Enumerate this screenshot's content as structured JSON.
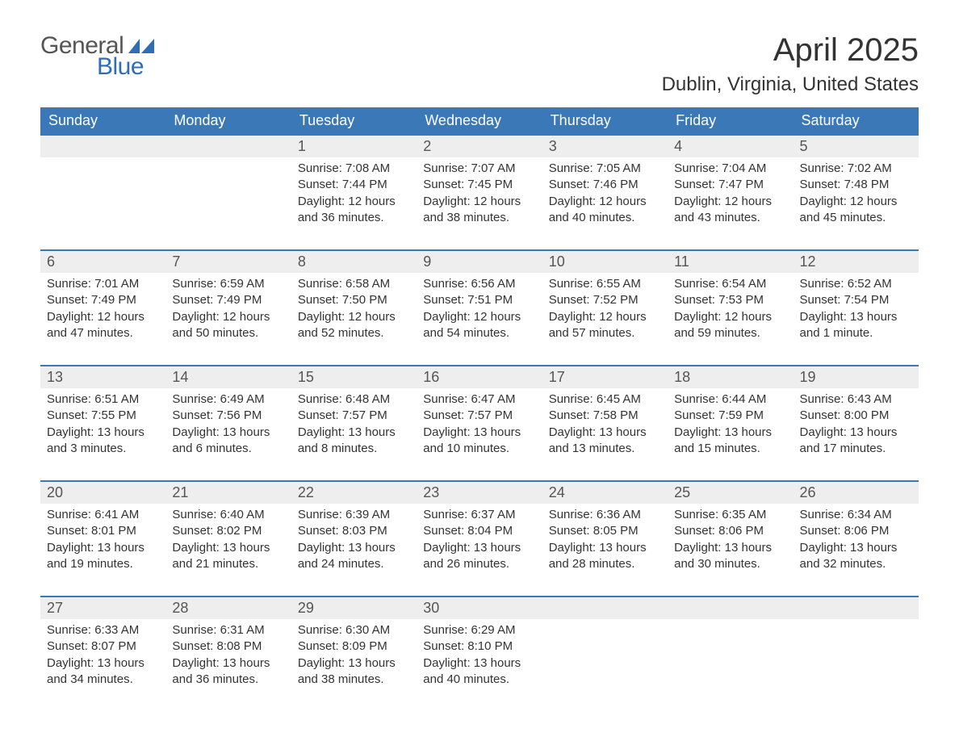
{
  "logo": {
    "text_general": "General",
    "text_blue": "Blue",
    "icon_color": "#2f6eb5"
  },
  "title": "April 2025",
  "location": "Dublin, Virginia, United States",
  "colors": {
    "header_bg": "#3b78b8",
    "header_text": "#ffffff",
    "daynum_bg": "#eeeeee",
    "daynum_border": "#3b78b8",
    "body_text": "#333333",
    "page_bg": "#ffffff"
  },
  "typography": {
    "title_fontsize": 40,
    "location_fontsize": 24,
    "header_fontsize": 18,
    "daynum_fontsize": 18,
    "detail_fontsize": 15
  },
  "day_headers": [
    "Sunday",
    "Monday",
    "Tuesday",
    "Wednesday",
    "Thursday",
    "Friday",
    "Saturday"
  ],
  "weeks": [
    [
      null,
      null,
      {
        "n": "1",
        "sunrise": "Sunrise: 7:08 AM",
        "sunset": "Sunset: 7:44 PM",
        "daylight": "Daylight: 12 hours and 36 minutes."
      },
      {
        "n": "2",
        "sunrise": "Sunrise: 7:07 AM",
        "sunset": "Sunset: 7:45 PM",
        "daylight": "Daylight: 12 hours and 38 minutes."
      },
      {
        "n": "3",
        "sunrise": "Sunrise: 7:05 AM",
        "sunset": "Sunset: 7:46 PM",
        "daylight": "Daylight: 12 hours and 40 minutes."
      },
      {
        "n": "4",
        "sunrise": "Sunrise: 7:04 AM",
        "sunset": "Sunset: 7:47 PM",
        "daylight": "Daylight: 12 hours and 43 minutes."
      },
      {
        "n": "5",
        "sunrise": "Sunrise: 7:02 AM",
        "sunset": "Sunset: 7:48 PM",
        "daylight": "Daylight: 12 hours and 45 minutes."
      }
    ],
    [
      {
        "n": "6",
        "sunrise": "Sunrise: 7:01 AM",
        "sunset": "Sunset: 7:49 PM",
        "daylight": "Daylight: 12 hours and 47 minutes."
      },
      {
        "n": "7",
        "sunrise": "Sunrise: 6:59 AM",
        "sunset": "Sunset: 7:49 PM",
        "daylight": "Daylight: 12 hours and 50 minutes."
      },
      {
        "n": "8",
        "sunrise": "Sunrise: 6:58 AM",
        "sunset": "Sunset: 7:50 PM",
        "daylight": "Daylight: 12 hours and 52 minutes."
      },
      {
        "n": "9",
        "sunrise": "Sunrise: 6:56 AM",
        "sunset": "Sunset: 7:51 PM",
        "daylight": "Daylight: 12 hours and 54 minutes."
      },
      {
        "n": "10",
        "sunrise": "Sunrise: 6:55 AM",
        "sunset": "Sunset: 7:52 PM",
        "daylight": "Daylight: 12 hours and 57 minutes."
      },
      {
        "n": "11",
        "sunrise": "Sunrise: 6:54 AM",
        "sunset": "Sunset: 7:53 PM",
        "daylight": "Daylight: 12 hours and 59 minutes."
      },
      {
        "n": "12",
        "sunrise": "Sunrise: 6:52 AM",
        "sunset": "Sunset: 7:54 PM",
        "daylight": "Daylight: 13 hours and 1 minute."
      }
    ],
    [
      {
        "n": "13",
        "sunrise": "Sunrise: 6:51 AM",
        "sunset": "Sunset: 7:55 PM",
        "daylight": "Daylight: 13 hours and 3 minutes."
      },
      {
        "n": "14",
        "sunrise": "Sunrise: 6:49 AM",
        "sunset": "Sunset: 7:56 PM",
        "daylight": "Daylight: 13 hours and 6 minutes."
      },
      {
        "n": "15",
        "sunrise": "Sunrise: 6:48 AM",
        "sunset": "Sunset: 7:57 PM",
        "daylight": "Daylight: 13 hours and 8 minutes."
      },
      {
        "n": "16",
        "sunrise": "Sunrise: 6:47 AM",
        "sunset": "Sunset: 7:57 PM",
        "daylight": "Daylight: 13 hours and 10 minutes."
      },
      {
        "n": "17",
        "sunrise": "Sunrise: 6:45 AM",
        "sunset": "Sunset: 7:58 PM",
        "daylight": "Daylight: 13 hours and 13 minutes."
      },
      {
        "n": "18",
        "sunrise": "Sunrise: 6:44 AM",
        "sunset": "Sunset: 7:59 PM",
        "daylight": "Daylight: 13 hours and 15 minutes."
      },
      {
        "n": "19",
        "sunrise": "Sunrise: 6:43 AM",
        "sunset": "Sunset: 8:00 PM",
        "daylight": "Daylight: 13 hours and 17 minutes."
      }
    ],
    [
      {
        "n": "20",
        "sunrise": "Sunrise: 6:41 AM",
        "sunset": "Sunset: 8:01 PM",
        "daylight": "Daylight: 13 hours and 19 minutes."
      },
      {
        "n": "21",
        "sunrise": "Sunrise: 6:40 AM",
        "sunset": "Sunset: 8:02 PM",
        "daylight": "Daylight: 13 hours and 21 minutes."
      },
      {
        "n": "22",
        "sunrise": "Sunrise: 6:39 AM",
        "sunset": "Sunset: 8:03 PM",
        "daylight": "Daylight: 13 hours and 24 minutes."
      },
      {
        "n": "23",
        "sunrise": "Sunrise: 6:37 AM",
        "sunset": "Sunset: 8:04 PM",
        "daylight": "Daylight: 13 hours and 26 minutes."
      },
      {
        "n": "24",
        "sunrise": "Sunrise: 6:36 AM",
        "sunset": "Sunset: 8:05 PM",
        "daylight": "Daylight: 13 hours and 28 minutes."
      },
      {
        "n": "25",
        "sunrise": "Sunrise: 6:35 AM",
        "sunset": "Sunset: 8:06 PM",
        "daylight": "Daylight: 13 hours and 30 minutes."
      },
      {
        "n": "26",
        "sunrise": "Sunrise: 6:34 AM",
        "sunset": "Sunset: 8:06 PM",
        "daylight": "Daylight: 13 hours and 32 minutes."
      }
    ],
    [
      {
        "n": "27",
        "sunrise": "Sunrise: 6:33 AM",
        "sunset": "Sunset: 8:07 PM",
        "daylight": "Daylight: 13 hours and 34 minutes."
      },
      {
        "n": "28",
        "sunrise": "Sunrise: 6:31 AM",
        "sunset": "Sunset: 8:08 PM",
        "daylight": "Daylight: 13 hours and 36 minutes."
      },
      {
        "n": "29",
        "sunrise": "Sunrise: 6:30 AM",
        "sunset": "Sunset: 8:09 PM",
        "daylight": "Daylight: 13 hours and 38 minutes."
      },
      {
        "n": "30",
        "sunrise": "Sunrise: 6:29 AM",
        "sunset": "Sunset: 8:10 PM",
        "daylight": "Daylight: 13 hours and 40 minutes."
      },
      null,
      null,
      null
    ]
  ]
}
